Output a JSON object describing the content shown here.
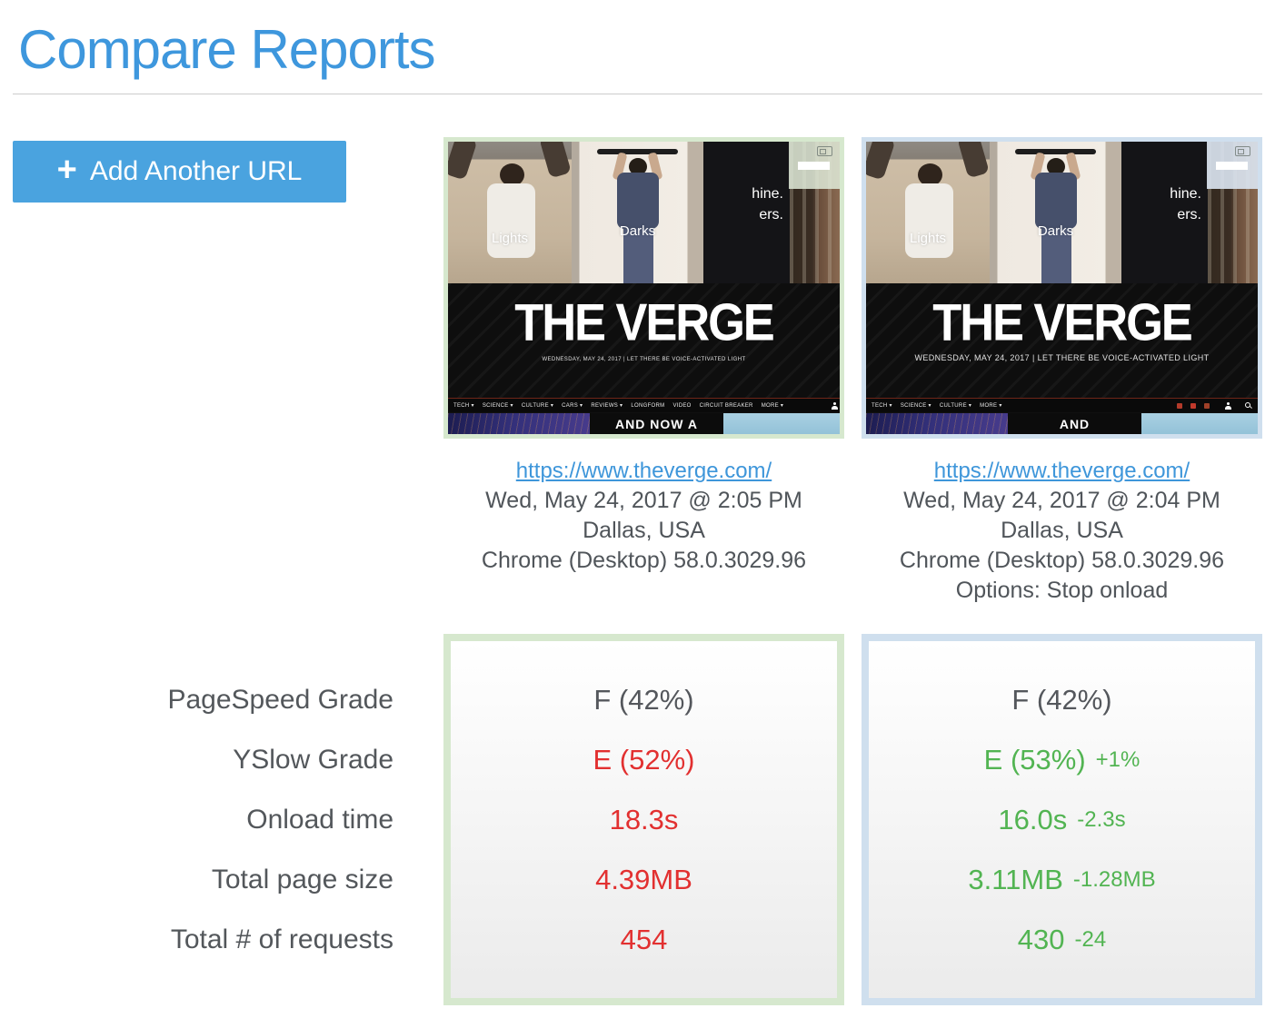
{
  "page": {
    "title": "Compare Reports"
  },
  "actions": {
    "add_url": "Add Another URL",
    "plus_icon": "+"
  },
  "metric_labels": [
    "PageSpeed Grade",
    "YSlow Grade",
    "Onload time",
    "Total page size",
    "Total # of requests"
  ],
  "colors": {
    "title_blue": "#3e97dd",
    "button_blue": "#4aa3df",
    "link_blue": "#3e96da",
    "value_red": "#e23030",
    "value_green": "#52b452",
    "value_gray": "#54575c",
    "label_gray": "#53575b",
    "panel_border_left": "#d6e8ce",
    "panel_border_right": "#cfdfee"
  },
  "thumbnail_common": {
    "logo": "THE VERGE",
    "lights": "Lights",
    "darks": "Darks",
    "ad_line1": "hine.",
    "ad_line2": "ers."
  },
  "reports": [
    {
      "url": "https://www.theverge.com/",
      "timestamp": "Wed, May 24, 2017 @ 2:05 PM",
      "location": "Dallas, USA",
      "browser": "Chrome (Desktop) 58.0.3029.96",
      "options": "",
      "metrics": [
        {
          "value": "F (42%)",
          "delta": ""
        },
        {
          "value": "E (52%)",
          "delta": ""
        },
        {
          "value": "18.3s",
          "delta": ""
        },
        {
          "value": "4.39MB",
          "delta": ""
        },
        {
          "value": "454",
          "delta": ""
        }
      ],
      "thumbnail": {
        "tagline": "WEDNESDAY, MAY 24, 2017 | LET THERE BE VOICE-ACTIVATED LIGHT",
        "nav": [
          "TECH ▾",
          "SCIENCE ▾",
          "CULTURE ▾",
          "CARS ▾",
          "REVIEWS ▾",
          "LONGFORM",
          "VIDEO",
          "CIRCUIT BREAKER",
          "MORE ▾"
        ],
        "bottom_headline": "AND NOW A"
      }
    },
    {
      "url": "https://www.theverge.com/",
      "timestamp": "Wed, May 24, 2017 @ 2:04 PM",
      "location": "Dallas, USA",
      "browser": "Chrome (Desktop) 58.0.3029.96",
      "options": "Options: Stop onload",
      "metrics": [
        {
          "value": "F (42%)",
          "delta": ""
        },
        {
          "value": "E (53%)",
          "delta": "+1%"
        },
        {
          "value": "16.0s",
          "delta": "-2.3s"
        },
        {
          "value": "3.11MB",
          "delta": "-1.28MB"
        },
        {
          "value": "430",
          "delta": "-24"
        }
      ],
      "thumbnail": {
        "tagline": "WEDNESDAY, MAY 24, 2017 | LET THERE BE VOICE-ACTIVATED LIGHT",
        "nav": [
          "TECH ▾",
          "SCIENCE ▾",
          "CULTURE ▾",
          "MORE ▾"
        ],
        "bottom_headline": "AND"
      }
    }
  ]
}
